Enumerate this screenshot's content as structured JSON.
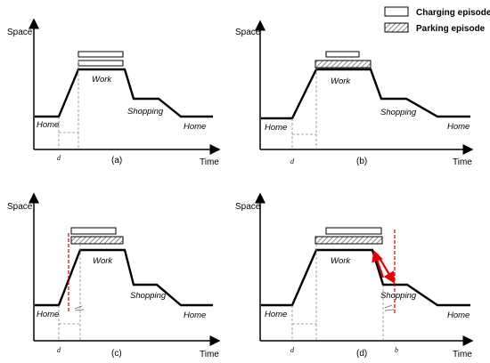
{
  "legend": {
    "charging": "Charging episode",
    "parking": "Parking episode"
  },
  "panels": [
    {
      "caption": "(a)",
      "y_axis": "Space",
      "x_axis": "Time",
      "labels": {
        "home_start": "Home",
        "work": "Work",
        "shopping": "Shopping",
        "home_end": "Home"
      },
      "ticks": [
        "d"
      ]
    },
    {
      "caption": "(b)",
      "y_axis": "Space",
      "x_axis": "Time",
      "labels": {
        "home_start": "Home",
        "work": "Work",
        "shopping": "Shopping",
        "home_end": "Home"
      },
      "ticks": [
        "d"
      ]
    },
    {
      "caption": "(c)",
      "y_axis": "Space",
      "x_axis": "Time",
      "labels": {
        "home_start": "Home",
        "work": "Work",
        "shopping": "Shopping",
        "home_end": "Home"
      },
      "ticks": [
        "d"
      ]
    },
    {
      "caption": "(d)",
      "y_axis": "Space",
      "x_axis": "Time",
      "labels": {
        "home_start": "Home",
        "work": "Work",
        "shopping": "Shopping",
        "home_end": "Home"
      },
      "ticks": [
        "d",
        "b"
      ]
    }
  ]
}
